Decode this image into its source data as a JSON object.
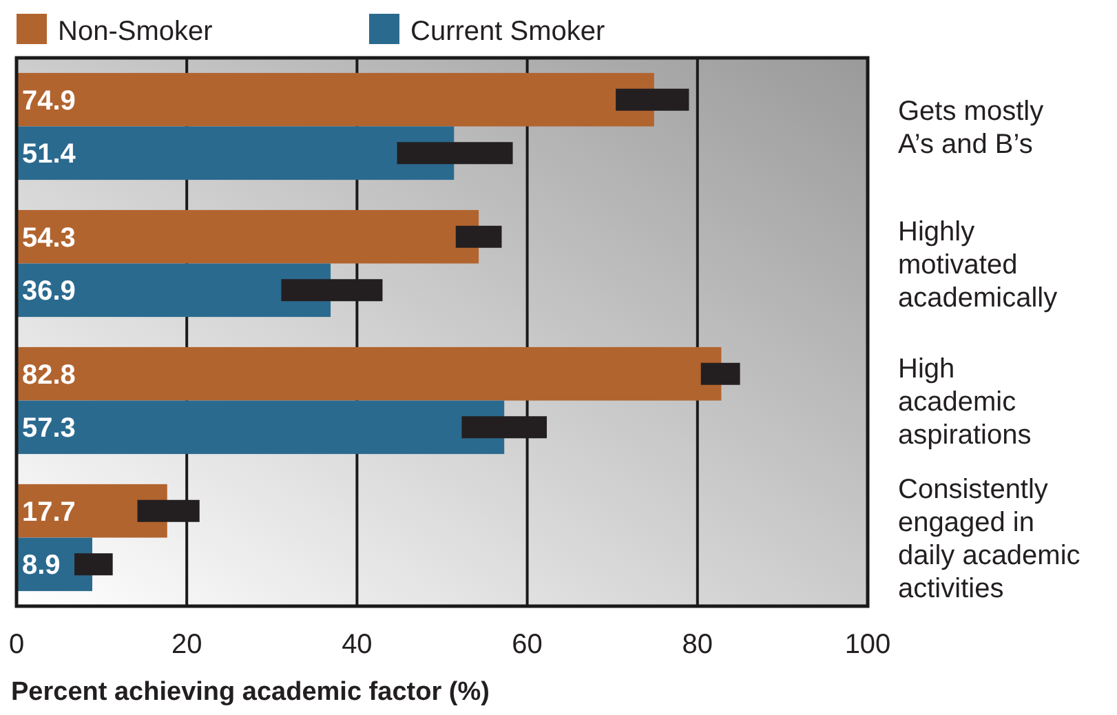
{
  "chart_data": {
    "type": "bar",
    "orientation": "horizontal",
    "xlabel": "Percent achieving academic factor (%)",
    "categories": [
      "Gets mostly\nA’s and B’s",
      "Highly\nmotivated\nacademically",
      "High\nacademic\naspirations",
      "Consistently\nengaged in\ndaily academic\nactivities"
    ],
    "series": [
      {
        "name": "Non-Smoker",
        "color": "#b2642f",
        "values": [
          74.9,
          54.3,
          82.8,
          17.7
        ],
        "errors": [
          [
            70.4,
            79.0
          ],
          [
            51.6,
            57.0
          ],
          [
            80.4,
            85.0
          ],
          [
            14.2,
            21.5
          ]
        ]
      },
      {
        "name": "Current Smoker",
        "color": "#2b6a8f",
        "values": [
          51.4,
          36.9,
          57.3,
          8.9
        ],
        "errors": [
          [
            44.7,
            58.3
          ],
          [
            31.1,
            43.0
          ],
          [
            52.3,
            62.3
          ],
          [
            6.8,
            11.3
          ]
        ]
      }
    ],
    "xlim": [
      0,
      100
    ],
    "xticks": [
      0,
      20,
      40,
      60,
      80,
      100
    ],
    "grid": "x",
    "legend": "top left",
    "data_labels": true
  }
}
